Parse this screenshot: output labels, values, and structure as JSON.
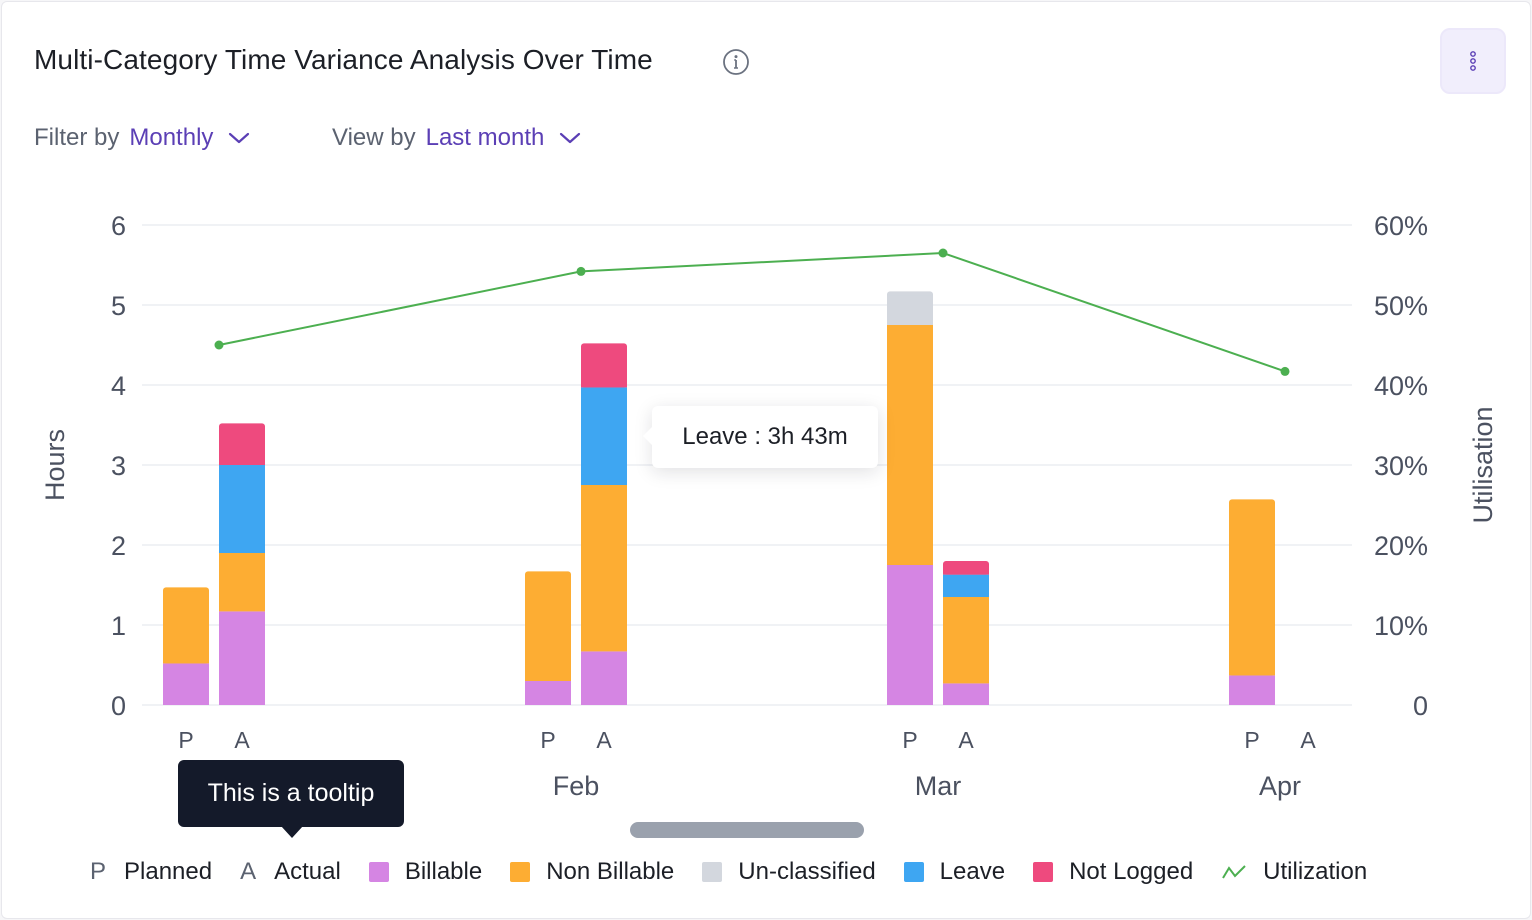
{
  "header": {
    "title": "Multi-Category Time Variance Analysis Over Time"
  },
  "filters": {
    "filter_label": "Filter by",
    "filter_value": "Monthly",
    "view_label": "View by",
    "view_value": "Last month"
  },
  "tooltips": {
    "hover": "Leave : 3h 43m",
    "demo": "This is a tooltip"
  },
  "legend": {
    "planned_letter": "P",
    "planned": "Planned",
    "actual_letter": "A",
    "actual": "Actual",
    "billable": "Billable",
    "non_billable": "Non Billable",
    "unclassified": "Un-classified",
    "leave": "Leave",
    "not_logged": "Not Logged",
    "utilization": "Utilization"
  },
  "colors": {
    "billable": "#d585e3",
    "non_billable": "#fdad33",
    "unclassified": "#d3d7de",
    "leave": "#3ea6f2",
    "not_logged": "#ee4a7e",
    "utilization": "#4caf50",
    "accent": "#5b3fb5"
  },
  "chart_data": {
    "type": "bar",
    "stacked": true,
    "ylabel": "Hours",
    "ylabel_right": "Utilisation",
    "ylim": [
      0,
      6
    ],
    "yticks": [
      "0",
      "1",
      "2",
      "3",
      "4",
      "5",
      "6"
    ],
    "ylim_right": [
      0,
      60
    ],
    "yticks_right": [
      "0",
      "10%",
      "20%",
      "30%",
      "40%",
      "50%",
      "60%"
    ],
    "grid": true,
    "groups": [
      {
        "label": "",
        "planned": {
          "billable": 0.52,
          "non_billable": 0.95
        },
        "actual": {
          "billable": 1.17,
          "non_billable": 0.73,
          "unclassified": 0,
          "leave": 1.1,
          "not_logged": 0.52
        }
      },
      {
        "label": "Feb",
        "planned": {
          "billable": 0.3,
          "non_billable": 1.37
        },
        "actual": {
          "billable": 0.67,
          "non_billable": 2.08,
          "unclassified": 0,
          "leave": 1.22,
          "not_logged": 0.55
        }
      },
      {
        "label": "Mar",
        "planned": {
          "billable": 1.75,
          "non_billable": 3.0,
          "unclassified": 0.42
        },
        "actual": {
          "billable": 0.27,
          "non_billable": 1.08,
          "unclassified": 0,
          "leave": 0.28,
          "not_logged": 0.17
        }
      },
      {
        "label": "Apr",
        "planned": {
          "billable": 0.37,
          "non_billable": 2.2
        },
        "actual": {}
      }
    ],
    "bar_labels": [
      "P",
      "A"
    ],
    "utilization": [
      45,
      54.2,
      56.5,
      41.7
    ]
  }
}
